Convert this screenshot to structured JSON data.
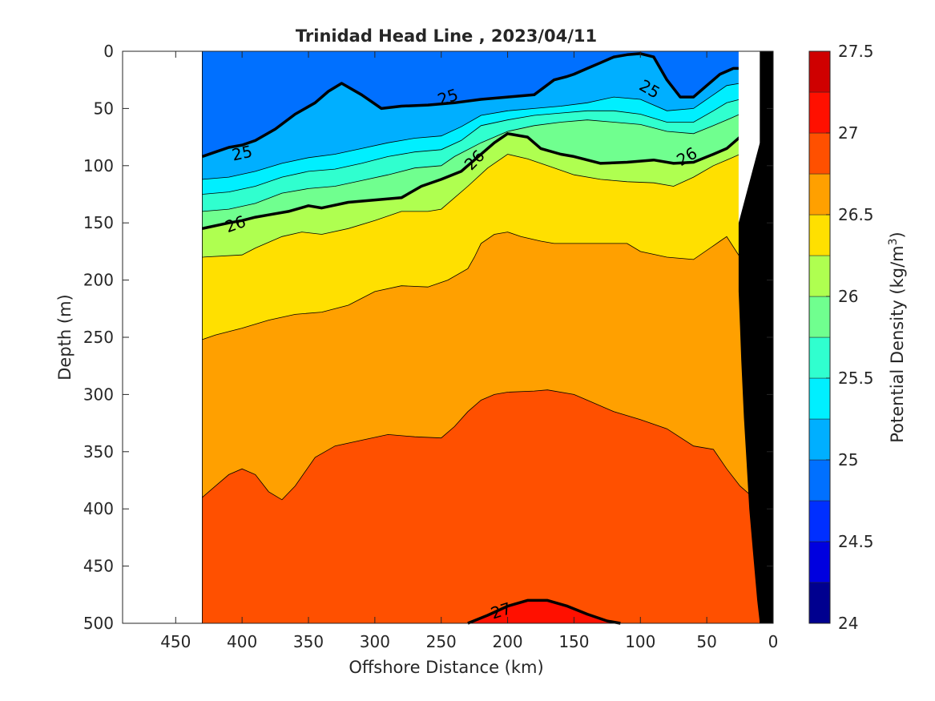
{
  "chart_data": {
    "type": "contour",
    "title": "Trinidad Head Line , 2023/04/11",
    "xlabel": "Offshore Distance (km)",
    "ylabel": "Depth (m)",
    "colorbar_label": "Potential Density (kg/m",
    "colorbar_label_sup": "3",
    "colorbar_label_end": ")",
    "xlim": [
      490,
      0
    ],
    "ylim": [
      0,
      500
    ],
    "x_reversed": true,
    "y_reversed": true,
    "x_ticks": [
      450,
      400,
      350,
      300,
      250,
      200,
      150,
      100,
      50,
      0
    ],
    "y_ticks": [
      0,
      50,
      100,
      150,
      200,
      250,
      300,
      350,
      400,
      450,
      500
    ],
    "colorbar": {
      "range": [
        24,
        27.5
      ],
      "ticks": [
        24,
        24.5,
        25,
        25.5,
        26,
        26.5,
        27,
        27.5
      ],
      "levels": [
        24,
        24.25,
        24.5,
        24.75,
        25,
        25.25,
        25.5,
        25.75,
        26,
        26.25,
        26.5,
        26.75,
        27,
        27.25,
        27.5
      ],
      "colors": [
        "#00008F",
        "#0000DF",
        "#002FFF",
        "#0070FF",
        "#00AFFF",
        "#00EFFF",
        "#30FFCF",
        "#70FF8F",
        "#AFFF50",
        "#FFE000",
        "#FFA000",
        "#FF5000",
        "#FF1000",
        "#CF0000"
      ]
    },
    "data_extent_x": [
      430,
      10
    ],
    "bathymetry_color": "#000000",
    "contours": [
      {
        "level": 25,
        "x": [
          430,
          420,
          410,
          400,
          390,
          375,
          360,
          345,
          335,
          325,
          310,
          295,
          280,
          260,
          240,
          220,
          200,
          180,
          165,
          155,
          150,
          140,
          130,
          120,
          110,
          100,
          90,
          80,
          70,
          60,
          50,
          40,
          30,
          20,
          10
        ],
        "y": [
          92,
          88,
          84,
          82,
          78,
          68,
          55,
          45,
          35,
          28,
          38,
          50,
          48,
          47,
          45,
          42,
          40,
          38,
          25,
          22,
          20,
          15,
          10,
          5,
          3,
          2,
          5,
          25,
          40,
          40,
          30,
          20,
          15,
          15,
          18
        ]
      },
      {
        "level": 26,
        "x": [
          430,
          410,
          400,
          390,
          380,
          365,
          350,
          340,
          320,
          300,
          280,
          265,
          250,
          235,
          225,
          210,
          200,
          185,
          175,
          160,
          150,
          140,
          130,
          110,
          90,
          75,
          60,
          45,
          35,
          25,
          15,
          10
        ],
        "y": [
          155,
          150,
          148,
          145,
          143,
          140,
          135,
          137,
          132,
          130,
          128,
          118,
          112,
          105,
          95,
          80,
          72,
          75,
          85,
          90,
          92,
          95,
          98,
          97,
          95,
          98,
          97,
          90,
          85,
          75,
          68,
          82
        ]
      },
      {
        "level": 27,
        "x": [
          230,
          215,
          200,
          185,
          170,
          155,
          140,
          125,
          115
        ],
        "y": [
          500,
          493,
          485,
          480,
          480,
          485,
          492,
          498,
          500
        ]
      }
    ],
    "contour_labels": [
      {
        "text": "25",
        "x": 400,
        "y": 89,
        "angle": -12
      },
      {
        "text": "25",
        "x": 245,
        "y": 40,
        "angle": -18
      },
      {
        "text": "25",
        "x": 93,
        "y": 33,
        "angle": 30
      },
      {
        "text": "26",
        "x": 405,
        "y": 151,
        "angle": -20
      },
      {
        "text": "26",
        "x": 225,
        "y": 95,
        "angle": -45
      },
      {
        "text": "26",
        "x": 65,
        "y": 92,
        "angle": -30
      },
      {
        "text": "27",
        "x": 205,
        "y": 489,
        "angle": -18
      }
    ],
    "fill_bands": [
      {
        "level": 27,
        "x": [
          430,
          10
        ],
        "y_top": [
          500,
          500
        ],
        "color_index": 12
      },
      {
        "level": 26.75,
        "x": [
          430,
          420,
          410,
          400,
          390,
          380,
          370,
          360,
          345,
          330,
          310,
          290,
          270,
          250,
          240,
          230,
          220,
          210,
          200,
          180,
          170,
          150,
          140,
          120,
          100,
          80,
          60,
          45,
          35,
          25,
          15,
          10
        ],
        "y_top": [
          390,
          380,
          370,
          365,
          370,
          385,
          392,
          380,
          355,
          345,
          340,
          335,
          337,
          338,
          328,
          315,
          305,
          300,
          298,
          297,
          296,
          300,
          305,
          315,
          322,
          330,
          345,
          348,
          365,
          380,
          390,
          395
        ],
        "color_index": 11
      },
      {
        "level": 26.5,
        "x": [
          430,
          420,
          400,
          380,
          360,
          340,
          320,
          300,
          280,
          260,
          245,
          230,
          225,
          220,
          210,
          200,
          190,
          175,
          165,
          150,
          130,
          110,
          100,
          80,
          60,
          45,
          40,
          35,
          25,
          15,
          10
        ],
        "y_top": [
          252,
          248,
          242,
          235,
          230,
          228,
          222,
          210,
          205,
          206,
          200,
          190,
          180,
          168,
          160,
          158,
          162,
          166,
          168,
          168,
          168,
          168,
          175,
          180,
          182,
          170,
          166,
          162,
          180,
          200,
          205
        ],
        "color_index": 10
      },
      {
        "level": 26.25,
        "x": [
          430,
          400,
          390,
          370,
          355,
          340,
          320,
          300,
          280,
          260,
          250,
          240,
          230,
          215,
          200,
          185,
          170,
          160,
          150,
          130,
          110,
          90,
          75,
          60,
          45,
          35,
          25,
          15,
          10
        ],
        "y_top": [
          180,
          178,
          172,
          162,
          158,
          160,
          155,
          148,
          140,
          140,
          138,
          128,
          118,
          102,
          90,
          94,
          100,
          104,
          108,
          112,
          114,
          115,
          118,
          110,
          100,
          95,
          90,
          95,
          115
        ],
        "color_index": 9
      },
      {
        "level": 26,
        "x": [
          430,
          410,
          400,
          390,
          380,
          365,
          350,
          340,
          320,
          300,
          280,
          265,
          250,
          235,
          225,
          210,
          200,
          185,
          175,
          160,
          150,
          140,
          130,
          110,
          90,
          75,
          60,
          45,
          35,
          25,
          15,
          10
        ],
        "y_top": [
          155,
          150,
          148,
          145,
          143,
          140,
          135,
          137,
          132,
          130,
          128,
          118,
          112,
          105,
          95,
          80,
          72,
          75,
          85,
          90,
          92,
          95,
          98,
          97,
          95,
          98,
          97,
          90,
          85,
          75,
          68,
          82
        ],
        "color_index": 8
      },
      {
        "level": 25.75,
        "x": [
          430,
          410,
          390,
          370,
          350,
          330,
          310,
          290,
          270,
          250,
          240,
          220,
          200,
          180,
          160,
          140,
          120,
          100,
          80,
          60,
          45,
          35,
          25,
          15,
          10
        ],
        "y_top": [
          140,
          138,
          133,
          124,
          120,
          118,
          113,
          108,
          102,
          100,
          92,
          80,
          70,
          65,
          62,
          60,
          62,
          64,
          70,
          72,
          65,
          60,
          55,
          52,
          65
        ],
        "color_index": 7
      },
      {
        "level": 25.5,
        "x": [
          430,
          410,
          390,
          370,
          350,
          330,
          310,
          290,
          270,
          250,
          235,
          220,
          200,
          180,
          160,
          140,
          120,
          100,
          80,
          60,
          45,
          35,
          25,
          15,
          10
        ],
        "y_top": [
          125,
          123,
          118,
          110,
          105,
          103,
          98,
          92,
          88,
          86,
          78,
          65,
          60,
          56,
          54,
          52,
          52,
          55,
          62,
          62,
          52,
          45,
          42,
          40,
          50
        ],
        "color_index": 6
      },
      {
        "level": 25.25,
        "x": [
          430,
          410,
          390,
          370,
          350,
          330,
          310,
          290,
          270,
          250,
          235,
          220,
          200,
          180,
          160,
          140,
          120,
          100,
          80,
          60,
          45,
          35,
          25,
          15,
          10
        ],
        "y_top": [
          112,
          110,
          105,
          98,
          93,
          90,
          85,
          80,
          76,
          74,
          66,
          56,
          52,
          50,
          48,
          45,
          40,
          42,
          52,
          50,
          38,
          30,
          28,
          26,
          35
        ],
        "color_index": 5
      },
      {
        "level": 25,
        "x": [
          430,
          420,
          410,
          400,
          390,
          375,
          360,
          345,
          335,
          325,
          310,
          295,
          280,
          260,
          240,
          220,
          200,
          180,
          165,
          155,
          150,
          140,
          130,
          120,
          110,
          100,
          90,
          80,
          70,
          60,
          50,
          40,
          30,
          20,
          10
        ],
        "y_top": [
          92,
          88,
          84,
          82,
          78,
          68,
          55,
          45,
          35,
          28,
          38,
          50,
          48,
          47,
          45,
          42,
          40,
          38,
          25,
          22,
          20,
          15,
          10,
          5,
          3,
          2,
          5,
          25,
          40,
          40,
          30,
          20,
          15,
          15,
          18
        ],
        "color_index": 4
      },
      {
        "level": 24.75,
        "x": [
          430,
          10
        ],
        "y_top": [
          0,
          0
        ],
        "color_index": 3
      },
      {
        "level": 24.5,
        "x": [
          90,
          85,
          80,
          70,
          60,
          50,
          45
        ],
        "y_top": [
          0,
          15,
          25,
          30,
          25,
          15,
          0
        ],
        "color_index": 2
      }
    ],
    "bathymetry": {
      "x": [
        10,
        0,
        0,
        10,
        12,
        15,
        18,
        20,
        22,
        24,
        25,
        26,
        26,
        10
      ],
      "y": [
        0,
        0,
        500,
        500,
        480,
        440,
        400,
        360,
        320,
        270,
        240,
        210,
        150,
        80
      ]
    },
    "coast_gap": {
      "x": [
        10,
        12,
        16,
        20,
        24,
        26,
        26,
        25,
        24,
        22,
        20,
        18,
        15,
        12,
        10,
        10
      ],
      "y": [
        0,
        0,
        0,
        0,
        0,
        0,
        150,
        210,
        240,
        270,
        320,
        360,
        400,
        440,
        480,
        500
      ]
    }
  }
}
